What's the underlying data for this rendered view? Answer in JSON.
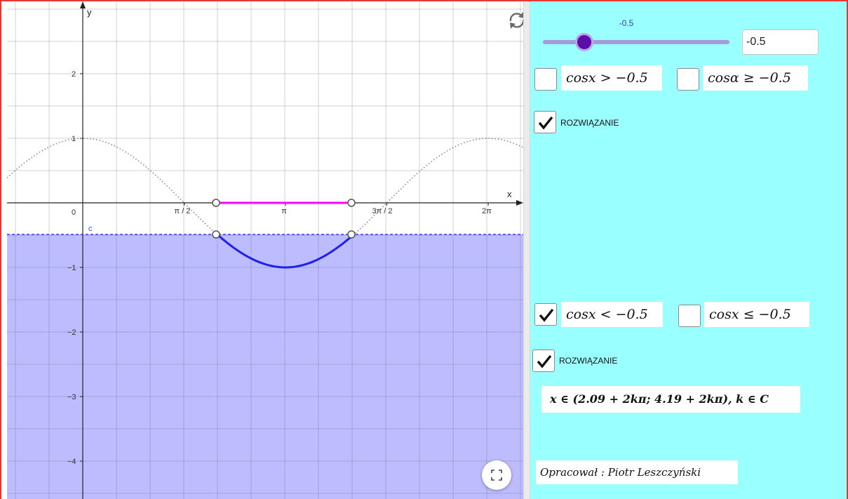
{
  "graph": {
    "y_axis_label": "y",
    "x_axis_label": "x",
    "line_label": "c",
    "y_tick_labels": [
      "2",
      "1",
      "0",
      "−1",
      "−2",
      "−3",
      "−4"
    ],
    "x_tick_labels": [
      "π / 2",
      "π",
      "3π / 2",
      "2π"
    ],
    "colors": {
      "shaded_region": "#bcbcff",
      "dashed_line": "#3d3dff",
      "solution_arc": "#1f1fee",
      "solution_interval": "#ff00ff",
      "cos_curve": "#8a8a8a"
    }
  },
  "controls": {
    "refresh_icon": "refresh-icon",
    "fullscreen_icon": "fullscreen-icon"
  },
  "panel": {
    "slider": {
      "value_label": "-0.5",
      "value": -0.5,
      "min": -1,
      "max": 1
    },
    "input_value": "-0.5",
    "ineq_gt": "cosx > −0.5",
    "ineq_ge": "cosα ≥ −0.5",
    "ineq_lt": "cosx < −0.5",
    "ineq_le": "cosx ≤ −0.5",
    "solution_label_1": "ROZWIĄZANIE",
    "solution_label_2": "ROZWIĄZANIE",
    "solution_text": "x ∈ (2.09 + 2kπ;  4.19 + 2kπ),  k ∈ C",
    "author": "Opracował : Piotr  Leszczyński",
    "checkbox_states": {
      "ineq_gt": false,
      "ineq_ge": false,
      "solution_1": true,
      "ineq_lt": true,
      "ineq_le": false,
      "solution_2": true
    },
    "background": "#99ffff"
  }
}
